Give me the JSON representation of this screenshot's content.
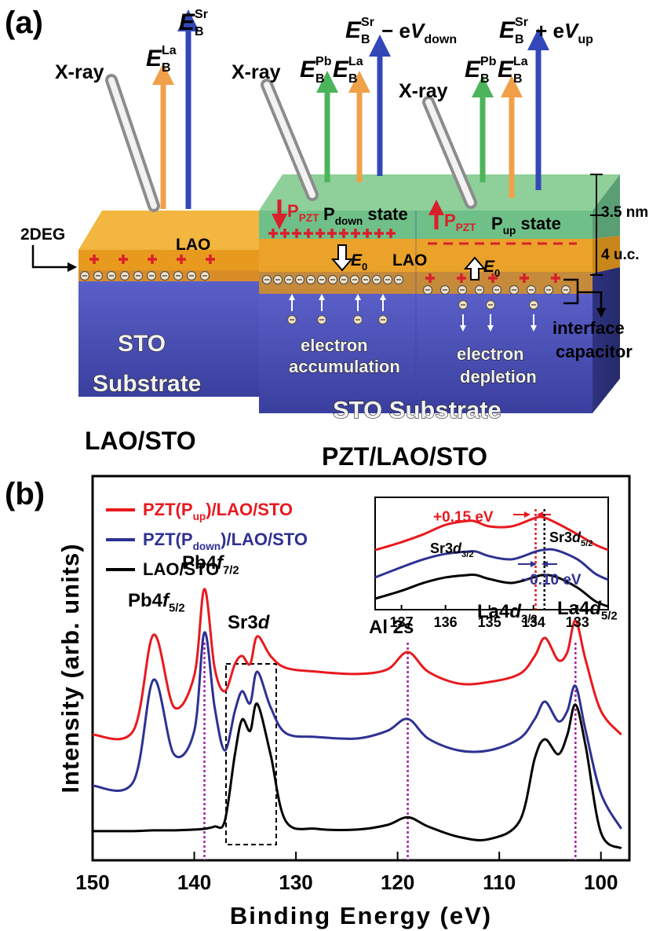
{
  "panel_a": {
    "label": "(a)",
    "xray": [
      "X-ray",
      "X-ray",
      "X-ray"
    ],
    "energies": [
      [
        "E",
        "B",
        "La"
      ],
      [
        "E",
        "B",
        "Sr"
      ],
      [
        "E",
        "B",
        "Pb"
      ],
      [
        "E",
        "B",
        "La"
      ],
      [
        "E",
        "B",
        "Sr",
        " − e",
        "V",
        "down"
      ],
      [
        "E",
        "B",
        "Pb"
      ],
      [
        "E",
        "B",
        "La"
      ],
      [
        "E",
        "B",
        "Sr",
        " + e",
        "V",
        "up"
      ]
    ],
    "two_deg": "2DEG",
    "lao": [
      "LAO",
      "LAO"
    ],
    "p_pzt": [
      [
        "P",
        "PZT"
      ],
      [
        "P",
        "PZT"
      ]
    ],
    "states": [
      [
        "P",
        "down",
        " state"
      ],
      [
        "P",
        "up",
        " state"
      ]
    ],
    "thickness": [
      "3.5 nm",
      "4 u.c."
    ],
    "field": [
      [
        "E",
        "0"
      ],
      [
        "E",
        "0"
      ]
    ],
    "left_substrate": [
      "STO",
      "Substrate"
    ],
    "accumulation": [
      "electron",
      "accumulation"
    ],
    "depletion": [
      "electron",
      "depletion"
    ],
    "capacitor": [
      "interface",
      "capacitor"
    ],
    "right_substrate": "STO Substrate",
    "captions": [
      "LAO/STO",
      "PZT/LAO/STO"
    ]
  },
  "panel_b_label": "(b)",
  "chart_data": [
    {
      "type": "line",
      "xlabel": "Binding Energy (eV)",
      "ylabel": "Intensity (arb. units)",
      "x": [
        150,
        146,
        144,
        142,
        140,
        139,
        138,
        137,
        136,
        135.3,
        134.5,
        133.8,
        132.5,
        131,
        128,
        124,
        121,
        119,
        117,
        114,
        111,
        108,
        106.5,
        105.5,
        104.2,
        103.3,
        102.5,
        101.5,
        100,
        98
      ],
      "xlim": [
        150,
        97.2
      ],
      "xticks": [
        150,
        140,
        130,
        120,
        110,
        100
      ],
      "ylim": [
        0,
        100
      ],
      "series": [
        {
          "name": [
            "PZT(P",
            "up",
            ")/LAO/STO"
          ],
          "color": "#e8191f",
          "values": [
            32.7,
            33.7,
            58.7,
            39.9,
            48.1,
            70.6,
            50.1,
            44.0,
            51.1,
            53.2,
            51.1,
            58.3,
            53.2,
            50.1,
            49.1,
            48.5,
            49.7,
            54.2,
            49.1,
            46.0,
            46.4,
            48.5,
            53.2,
            57.9,
            52.1,
            54.2,
            62.4,
            52.1,
            38.9,
            32.7
          ]
        },
        {
          "name": [
            "PZT(P",
            "down",
            ")/LAO/STO"
          ],
          "color": "#2e3192",
          "values": [
            19.4,
            20.4,
            47.0,
            27.6,
            33.7,
            59.3,
            39.9,
            28.6,
            38.9,
            44.0,
            40.9,
            49.1,
            39.9,
            33.1,
            32.1,
            31.7,
            33.7,
            36.8,
            31.7,
            28.6,
            28.6,
            31.7,
            36.8,
            41.3,
            36.2,
            38.9,
            45.4,
            33.7,
            17.4,
            8.2
          ]
        },
        {
          "name": [
            "LAO/STO"
          ],
          "color": "#000000",
          "values": [
            7.6,
            7.6,
            7.8,
            7.8,
            8.0,
            8.2,
            8.8,
            10.2,
            27.6,
            36.6,
            33.7,
            40.7,
            27.6,
            10.2,
            8.2,
            8.0,
            9.2,
            11.2,
            8.8,
            6.1,
            5.5,
            10.2,
            26.6,
            31.5,
            27.6,
            32.7,
            40.5,
            29.7,
            7.2,
            3.1
          ]
        }
      ],
      "vlines": [
        139,
        119,
        102.5
      ],
      "vline_color": "#a020a0",
      "peak_labels": [
        [
          "Pb4",
          "f",
          "5/2"
        ],
        [
          "Pb4",
          "f",
          "7/2"
        ],
        [
          "Sr3",
          "d"
        ],
        [
          "Al 2s"
        ],
        [
          "La4",
          "d",
          "3/2"
        ],
        [
          "La4",
          "d",
          "5/2"
        ]
      ]
    },
    {
      "type": "line",
      "x": [
        137.6,
        137,
        136.5,
        136,
        135.5,
        135.3,
        135,
        134.5,
        134,
        133.8,
        133.5,
        133,
        132.6,
        132.3
      ],
      "xlim": [
        137.6,
        132.3
      ],
      "xticks": [
        137,
        136,
        135,
        134,
        133
      ],
      "ylim": [
        0,
        100
      ],
      "series": [
        {
          "color": "#e8191f",
          "values": [
            53.1,
            60.1,
            67.1,
            75.5,
            79.0,
            78.3,
            74.1,
            74.1,
            81.1,
            82.5,
            77.6,
            67.1,
            58.0,
            53.1
          ]
        },
        {
          "color": "#2e3192",
          "values": [
            28.7,
            37.8,
            44.8,
            49.7,
            51.7,
            51.7,
            47.6,
            44.8,
            51.0,
            53.1,
            53.1,
            44.8,
            32.2,
            26.6
          ]
        },
        {
          "color": "#000000",
          "values": [
            9.8,
            16.8,
            23.8,
            28.7,
            30.8,
            30.8,
            27.3,
            23.8,
            28.7,
            30.8,
            29.4,
            19.6,
            7.7,
            2.8
          ]
        }
      ],
      "vlines": [
        {
          "value": 133.95,
          "color": "#e8191f"
        },
        {
          "value": 133.75,
          "color": "#000000"
        }
      ],
      "peak_labels": [
        [
          "Sr3",
          "d",
          "3/2"
        ],
        [
          "Sr3",
          "d",
          "5/2"
        ]
      ],
      "annotations": [
        {
          "text": "+0.15 eV",
          "color": "#e8191f"
        },
        {
          "text": "−0.10 eV",
          "color": "#2e3192"
        }
      ]
    }
  ]
}
